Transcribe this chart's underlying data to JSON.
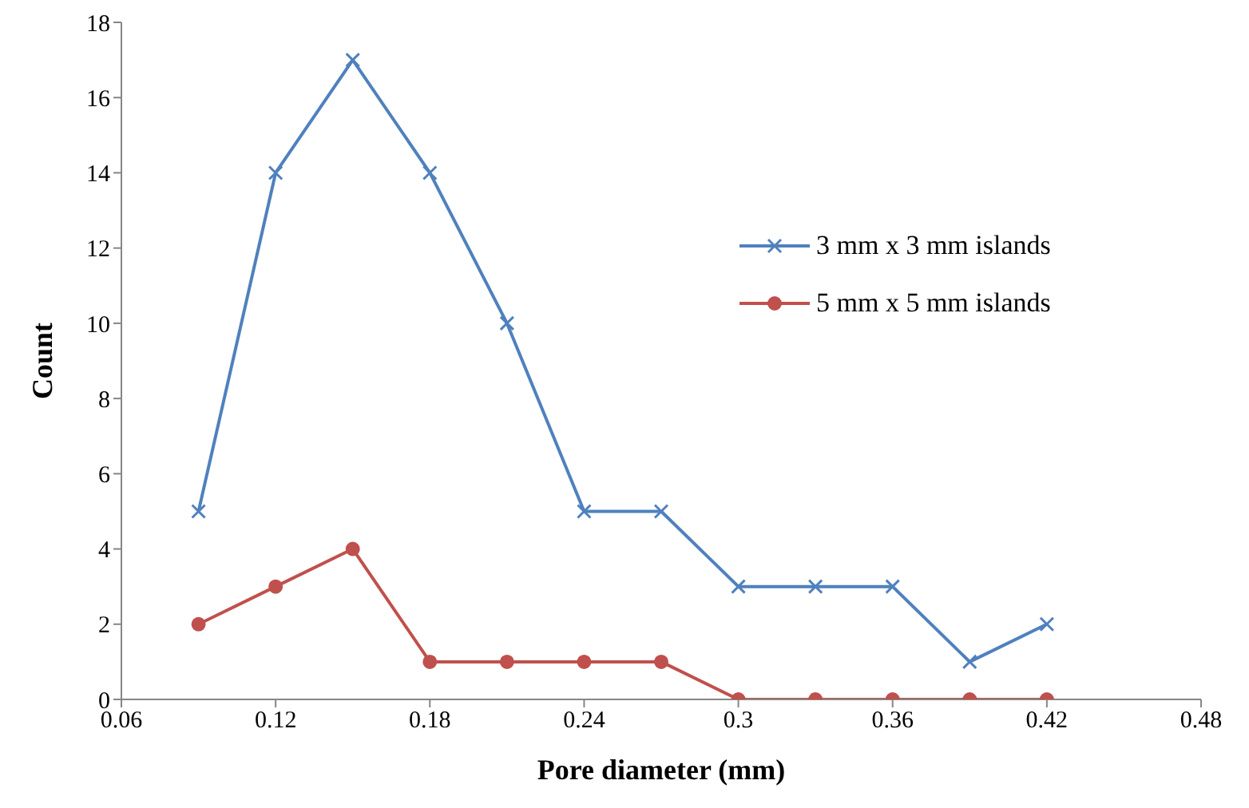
{
  "chart_data": {
    "type": "line",
    "xlabel": "Pore diameter (mm)",
    "ylabel": "Count",
    "x": [
      0.09,
      0.12,
      0.15,
      0.18,
      0.21,
      0.24,
      0.27,
      0.3,
      0.33,
      0.36,
      0.39,
      0.42
    ],
    "series": [
      {
        "name": "3 mm x 3 mm islands",
        "color": "#4f81bd",
        "marker": "cross",
        "values": [
          5,
          14,
          17,
          14,
          10,
          5,
          5,
          3,
          3,
          3,
          1,
          2
        ]
      },
      {
        "name": "5 mm x 5 mm islands",
        "color": "#c0504d",
        "marker": "circle",
        "values": [
          2,
          3,
          4,
          1,
          1,
          1,
          1,
          0,
          0,
          0,
          0,
          0
        ]
      }
    ],
    "xlim": [
      0.06,
      0.48
    ],
    "xticks": [
      0.06,
      0.12,
      0.18,
      0.24,
      0.3,
      0.36,
      0.42,
      0.48
    ],
    "ylim": [
      0,
      18
    ],
    "yticks": [
      0,
      2,
      4,
      6,
      8,
      10,
      12,
      14,
      16,
      18
    ],
    "grid": false,
    "legend": "right",
    "line_style": "solid"
  }
}
